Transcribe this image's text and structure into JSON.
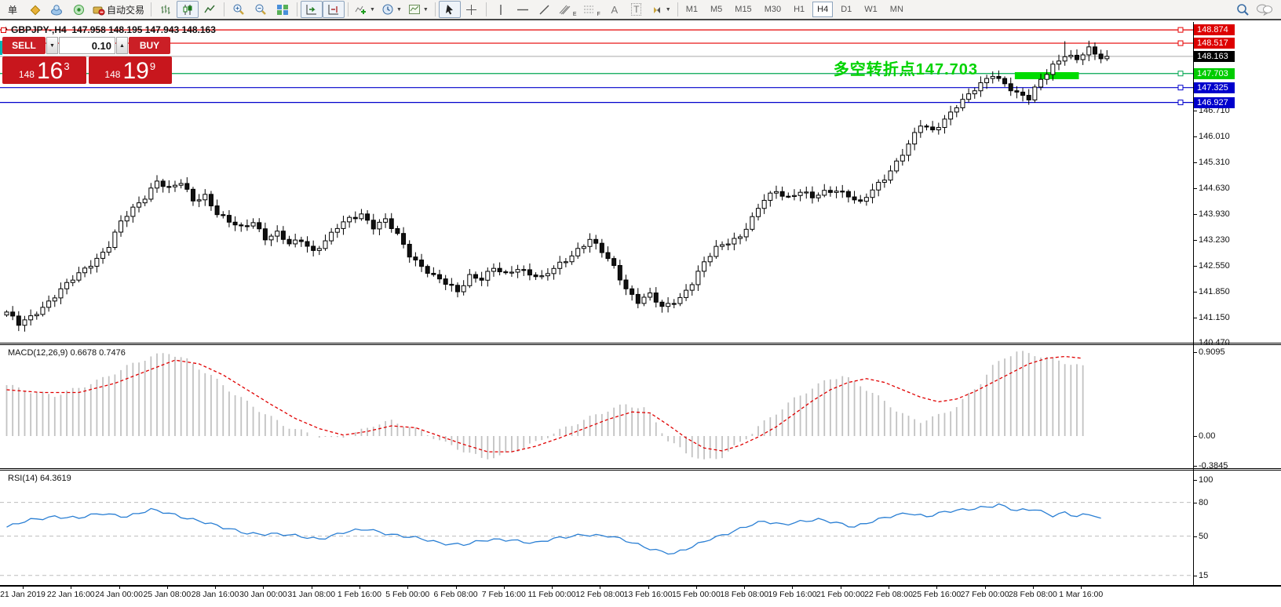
{
  "toolbar": {
    "new_order_label": "单",
    "autotrade_label": "自动交易",
    "channel_sub": "E",
    "fibo_sub": "F",
    "text_tool": "A",
    "label_tool": "T",
    "timeframes": [
      "M1",
      "M5",
      "M15",
      "M30",
      "H1",
      "H4",
      "D1",
      "W1",
      "MN"
    ],
    "active_timeframe": "H4"
  },
  "trade_panel": {
    "sell_label": "SELL",
    "buy_label": "BUY",
    "volume": "0.10",
    "sell_price_prefix": "148",
    "sell_price_big": "16",
    "sell_price_sup": "3",
    "buy_price_prefix": "148",
    "buy_price_big": "19",
    "buy_price_sup": "9"
  },
  "chart": {
    "title": "GBPJPY-,H4  147.958 148.195 147.943 148.163",
    "annotation": "多空转折点147.703",
    "macd_label": "MACD(12,26,9) 0.6678 0.7476",
    "rsi_label": "RSI(14) 64.3619"
  },
  "levels": [
    {
      "price": 148.874,
      "label": "148.874",
      "line_color": "#e60000",
      "tag_bg": "#dd0000",
      "current": false
    },
    {
      "price": 148.517,
      "label": "148.517",
      "line_color": "#e60000",
      "tag_bg": "#dd0000",
      "current": false
    },
    {
      "price": 148.163,
      "label": "148.163",
      "line_color": "#b8b8b8",
      "tag_bg": "#000000",
      "current": true
    },
    {
      "price": 147.703,
      "label": "147.703",
      "line_color": "#00a651",
      "tag_bg": "#00cc00",
      "current": false
    },
    {
      "price": 147.325,
      "label": "147.325",
      "line_color": "#0000cc",
      "tag_bg": "#0000cc",
      "current": false
    },
    {
      "price": 146.927,
      "label": "146.927",
      "line_color": "#0000cc",
      "tag_bg": "#0000cc",
      "current": false
    }
  ],
  "price_axis": [
    "146.710",
    "146.010",
    "145.310",
    "144.630",
    "143.930",
    "143.230",
    "142.550",
    "141.850",
    "141.150",
    "140.470"
  ],
  "macd_axis": [
    "0.9095",
    "0.00",
    "-0.3845"
  ],
  "rsi_axis": [
    "100",
    "80",
    "50",
    "15"
  ],
  "time_axis": [
    "21 Jan 2019",
    "22 Jan 16:00",
    "24 Jan 00:00",
    "25 Jan 08:00",
    "28 Jan 16:00",
    "30 Jan 00:00",
    "31 Jan 08:00",
    "1 Feb 16:00",
    "5 Feb 00:00",
    "6 Feb 08:00",
    "7 Feb 16:00",
    "11 Feb 00:00",
    "12 Feb 08:00",
    "13 Feb 16:00",
    "15 Feb 00:00",
    "18 Feb 08:00",
    "19 Feb 16:00",
    "21 Feb 00:00",
    "22 Feb 08:00",
    "25 Feb 16:00",
    "27 Feb 00:00",
    "28 Feb 08:00",
    "1 Mar 16:00"
  ],
  "chart_data": [
    {
      "type": "candlestick",
      "symbol": "GBPJPY-",
      "timeframe": "H4",
      "bars": 184,
      "last_ohlc": {
        "open": 147.958,
        "high": 148.195,
        "low": 147.943,
        "close": 148.163
      },
      "ylim": [
        140.2,
        148.95
      ],
      "levels": [
        148.874,
        148.517,
        148.163,
        147.703,
        147.325,
        146.927
      ],
      "annotation_zone": {
        "bar_from": 168,
        "bar_to": 178,
        "price_from": 147.55,
        "price_to": 147.74
      },
      "close_waypoints": [
        [
          0,
          141.3
        ],
        [
          2,
          140.95
        ],
        [
          4,
          141.15
        ],
        [
          6,
          141.45
        ],
        [
          9,
          141.9
        ],
        [
          12,
          142.3
        ],
        [
          15,
          142.75
        ],
        [
          17,
          143.1
        ],
        [
          19,
          143.7
        ],
        [
          21,
          144.05
        ],
        [
          23,
          144.4
        ],
        [
          25,
          144.85
        ],
        [
          27,
          144.6
        ],
        [
          29,
          144.75
        ],
        [
          31,
          144.3
        ],
        [
          33,
          144.45
        ],
        [
          35,
          143.95
        ],
        [
          37,
          143.7
        ],
        [
          39,
          143.55
        ],
        [
          41,
          143.75
        ],
        [
          43,
          143.3
        ],
        [
          45,
          143.4
        ],
        [
          47,
          143.1
        ],
        [
          49,
          143.25
        ],
        [
          51,
          142.95
        ],
        [
          53,
          143.2
        ],
        [
          55,
          143.55
        ],
        [
          57,
          143.8
        ],
        [
          59,
          143.95
        ],
        [
          61,
          143.6
        ],
        [
          63,
          143.75
        ],
        [
          65,
          143.35
        ],
        [
          67,
          142.85
        ],
        [
          69,
          142.55
        ],
        [
          71,
          142.25
        ],
        [
          73,
          142.05
        ],
        [
          75,
          141.85
        ],
        [
          77,
          142.3
        ],
        [
          79,
          142.2
        ],
        [
          81,
          142.45
        ],
        [
          83,
          142.3
        ],
        [
          85,
          142.5
        ],
        [
          87,
          142.35
        ],
        [
          89,
          142.2
        ],
        [
          91,
          142.45
        ],
        [
          93,
          142.7
        ],
        [
          95,
          143.0
        ],
        [
          97,
          143.25
        ],
        [
          99,
          142.9
        ],
        [
          101,
          142.5
        ],
        [
          103,
          141.95
        ],
        [
          105,
          141.6
        ],
        [
          107,
          141.75
        ],
        [
          109,
          141.4
        ],
        [
          112,
          141.7
        ],
        [
          114,
          142.1
        ],
        [
          116,
          142.6
        ],
        [
          118,
          143.0
        ],
        [
          120,
          143.2
        ],
        [
          122,
          143.35
        ],
        [
          124,
          143.8
        ],
        [
          126,
          144.3
        ],
        [
          128,
          144.55
        ],
        [
          130,
          144.4
        ],
        [
          132,
          144.55
        ],
        [
          134,
          144.35
        ],
        [
          136,
          144.5
        ],
        [
          138,
          144.6
        ],
        [
          140,
          144.45
        ],
        [
          142,
          144.2
        ],
        [
          144,
          144.55
        ],
        [
          146,
          144.9
        ],
        [
          148,
          145.35
        ],
        [
          150,
          145.8
        ],
        [
          152,
          146.3
        ],
        [
          154,
          146.15
        ],
        [
          156,
          146.5
        ],
        [
          158,
          146.85
        ],
        [
          160,
          147.1
        ],
        [
          162,
          147.4
        ],
        [
          164,
          147.7
        ],
        [
          166,
          147.45
        ],
        [
          168,
          147.15
        ],
        [
          170,
          147.0
        ],
        [
          172,
          147.55
        ],
        [
          174,
          147.95
        ],
        [
          176,
          148.2
        ],
        [
          178,
          148.05
        ],
        [
          180,
          148.35
        ],
        [
          182,
          148.1
        ],
        [
          183,
          148.163
        ]
      ]
    },
    {
      "type": "bar",
      "name": "MACD(12,26,9)",
      "current": 0.6678,
      "signal_current": 0.7476,
      "ylim": [
        -0.3845,
        0.9095
      ],
      "histogram_waypoints": [
        [
          0,
          0.55
        ],
        [
          4,
          0.48
        ],
        [
          8,
          0.44
        ],
        [
          12,
          0.52
        ],
        [
          16,
          0.62
        ],
        [
          20,
          0.75
        ],
        [
          24,
          0.86
        ],
        [
          27,
          0.9
        ],
        [
          30,
          0.82
        ],
        [
          34,
          0.65
        ],
        [
          38,
          0.45
        ],
        [
          42,
          0.28
        ],
        [
          46,
          0.12
        ],
        [
          50,
          0.03
        ],
        [
          54,
          -0.03
        ],
        [
          58,
          0.03
        ],
        [
          61,
          0.12
        ],
        [
          64,
          0.16
        ],
        [
          67,
          0.1
        ],
        [
          70,
          0.02
        ],
        [
          73,
          -0.08
        ],
        [
          76,
          -0.16
        ],
        [
          79,
          -0.24
        ],
        [
          82,
          -0.22
        ],
        [
          85,
          -0.15
        ],
        [
          88,
          -0.07
        ],
        [
          91,
          0.03
        ],
        [
          94,
          0.12
        ],
        [
          97,
          0.2
        ],
        [
          100,
          0.28
        ],
        [
          103,
          0.34
        ],
        [
          106,
          0.3
        ],
        [
          108,
          0.15
        ],
        [
          110,
          -0.05
        ],
        [
          113,
          -0.18
        ],
        [
          116,
          -0.27
        ],
        [
          119,
          -0.22
        ],
        [
          121,
          -0.12
        ],
        [
          123,
          -0.02
        ],
        [
          125,
          0.1
        ],
        [
          128,
          0.25
        ],
        [
          131,
          0.4
        ],
        [
          134,
          0.52
        ],
        [
          137,
          0.62
        ],
        [
          139,
          0.65
        ],
        [
          142,
          0.55
        ],
        [
          145,
          0.42
        ],
        [
          148,
          0.28
        ],
        [
          150,
          0.2
        ],
        [
          152,
          0.16
        ],
        [
          155,
          0.22
        ],
        [
          158,
          0.32
        ],
        [
          160,
          0.45
        ],
        [
          162,
          0.58
        ],
        [
          164,
          0.75
        ],
        [
          166,
          0.85
        ],
        [
          168,
          0.91
        ],
        [
          171,
          0.88
        ],
        [
          174,
          0.83
        ],
        [
          177,
          0.78
        ],
        [
          180,
          0.73
        ],
        [
          183,
          0.668
        ]
      ],
      "signal_waypoints": [
        [
          0,
          0.5
        ],
        [
          6,
          0.47
        ],
        [
          12,
          0.47
        ],
        [
          18,
          0.57
        ],
        [
          24,
          0.72
        ],
        [
          28,
          0.82
        ],
        [
          32,
          0.78
        ],
        [
          36,
          0.66
        ],
        [
          40,
          0.5
        ],
        [
          44,
          0.34
        ],
        [
          48,
          0.19
        ],
        [
          52,
          0.08
        ],
        [
          56,
          0.01
        ],
        [
          60,
          0.05
        ],
        [
          64,
          0.11
        ],
        [
          68,
          0.09
        ],
        [
          72,
          0.0
        ],
        [
          76,
          -0.09
        ],
        [
          80,
          -0.17
        ],
        [
          84,
          -0.17
        ],
        [
          88,
          -0.11
        ],
        [
          92,
          -0.02
        ],
        [
          96,
          0.08
        ],
        [
          100,
          0.18
        ],
        [
          104,
          0.26
        ],
        [
          107,
          0.25
        ],
        [
          110,
          0.12
        ],
        [
          113,
          -0.02
        ],
        [
          116,
          -0.13
        ],
        [
          119,
          -0.16
        ],
        [
          122,
          -0.1
        ],
        [
          125,
          -0.01
        ],
        [
          128,
          0.1
        ],
        [
          131,
          0.24
        ],
        [
          134,
          0.38
        ],
        [
          137,
          0.5
        ],
        [
          140,
          0.58
        ],
        [
          143,
          0.62
        ],
        [
          146,
          0.58
        ],
        [
          149,
          0.5
        ],
        [
          152,
          0.42
        ],
        [
          155,
          0.37
        ],
        [
          158,
          0.4
        ],
        [
          161,
          0.48
        ],
        [
          164,
          0.58
        ],
        [
          167,
          0.68
        ],
        [
          170,
          0.78
        ],
        [
          173,
          0.84
        ],
        [
          176,
          0.86
        ],
        [
          179,
          0.84
        ],
        [
          181,
          0.8
        ],
        [
          183,
          0.748
        ]
      ]
    },
    {
      "type": "line",
      "name": "RSI(14)",
      "current": 64.3619,
      "ylim": [
        0,
        100
      ],
      "levels": [
        80,
        50,
        15
      ],
      "waypoints": [
        [
          0,
          58
        ],
        [
          4,
          64
        ],
        [
          8,
          68
        ],
        [
          12,
          66
        ],
        [
          16,
          70
        ],
        [
          20,
          68
        ],
        [
          24,
          73
        ],
        [
          28,
          69
        ],
        [
          32,
          64
        ],
        [
          36,
          57
        ],
        [
          40,
          53
        ],
        [
          44,
          52
        ],
        [
          48,
          50
        ],
        [
          52,
          48
        ],
        [
          56,
          53
        ],
        [
          60,
          56
        ],
        [
          64,
          52
        ],
        [
          68,
          48
        ],
        [
          72,
          44
        ],
        [
          76,
          43
        ],
        [
          80,
          46
        ],
        [
          84,
          47
        ],
        [
          88,
          44
        ],
        [
          92,
          48
        ],
        [
          96,
          52
        ],
        [
          100,
          50
        ],
        [
          104,
          44
        ],
        [
          108,
          38
        ],
        [
          111,
          34
        ],
        [
          114,
          40
        ],
        [
          117,
          48
        ],
        [
          120,
          53
        ],
        [
          123,
          58
        ],
        [
          126,
          63
        ],
        [
          129,
          61
        ],
        [
          132,
          63
        ],
        [
          135,
          64
        ],
        [
          138,
          62
        ],
        [
          141,
          59
        ],
        [
          144,
          63
        ],
        [
          147,
          67
        ],
        [
          150,
          71
        ],
        [
          153,
          68
        ],
        [
          156,
          71
        ],
        [
          159,
          73
        ],
        [
          162,
          76
        ],
        [
          165,
          78
        ],
        [
          168,
          72
        ],
        [
          171,
          74
        ],
        [
          174,
          69
        ],
        [
          176,
          71
        ],
        [
          178,
          67
        ],
        [
          180,
          69
        ],
        [
          182,
          66
        ],
        [
          183,
          64.36
        ]
      ]
    }
  ]
}
